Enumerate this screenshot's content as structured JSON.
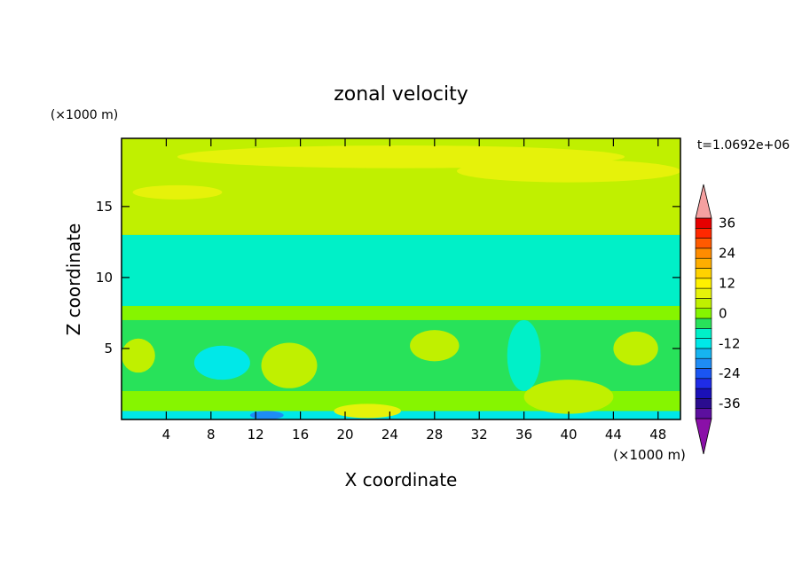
{
  "chart_data": {
    "type": "heatmap",
    "title": "zonal velocity",
    "xlabel": "X coordinate",
    "ylabel": "Z coordinate",
    "x_unit": "(×1000 m)",
    "y_unit": "(×1000 m)",
    "time_label": "t=1.0692e+06",
    "xlim": [
      0,
      50
    ],
    "ylim": [
      0,
      19.8
    ],
    "x_ticks": [
      4,
      8,
      12,
      16,
      20,
      24,
      28,
      32,
      36,
      40,
      44,
      48
    ],
    "y_ticks": [
      5,
      10,
      15
    ],
    "colorbar": {
      "levels": [
        -40,
        -36,
        -32,
        -28,
        -24,
        -20,
        -16,
        -12,
        -8,
        -4,
        0,
        4,
        8,
        12,
        16,
        20,
        24,
        28,
        32,
        36,
        40
      ],
      "tick_labels": [
        "36",
        "24",
        "12",
        "0",
        "-12",
        "-24",
        "-36"
      ],
      "tick_values": [
        36,
        24,
        12,
        0,
        -12,
        -24,
        -36
      ],
      "colors": [
        "#5c0f9e",
        "#2a0c8f",
        "#1a10b8",
        "#1f2ce6",
        "#1a55f2",
        "#1e8cf5",
        "#16b4f0",
        "#00e8e8",
        "#00f0c8",
        "#28e25a",
        "#86f500",
        "#c0f000",
        "#e6f20a",
        "#fff100",
        "#ffd200",
        "#ffae00",
        "#ff8c00",
        "#ff5a00",
        "#ff2800",
        "#e60000"
      ],
      "over_color": "#f5a0a0",
      "under_color": "#8a10a8"
    },
    "layers": [
      {
        "z": [
          0,
          0.6
        ],
        "value": -10
      },
      {
        "z": [
          0.6,
          2
        ],
        "value": 2
      },
      {
        "z": [
          2,
          4
        ],
        "value": -4
      },
      {
        "z": [
          4,
          7
        ],
        "value": -1
      },
      {
        "z": [
          7,
          8
        ],
        "value": 2
      },
      {
        "z": [
          8,
          13
        ],
        "value": -6
      },
      {
        "z": [
          13,
          19.8
        ],
        "value": 6
      }
    ],
    "features": [
      {
        "x": 15,
        "z": 3.8,
        "rx": 2.5,
        "rz": 1.6,
        "value": 6
      },
      {
        "x": 28,
        "z": 5.2,
        "rx": 2.2,
        "rz": 1.1,
        "value": 5
      },
      {
        "x": 40,
        "z": 1.6,
        "rx": 4,
        "rz": 1.2,
        "value": 6
      },
      {
        "x": 22,
        "z": 0.6,
        "rx": 3,
        "rz": 0.5,
        "value": 9
      },
      {
        "x": 1.5,
        "z": 4.5,
        "rx": 1.5,
        "rz": 1.2,
        "value": 5
      },
      {
        "x": 46,
        "z": 5,
        "rx": 2,
        "rz": 1.2,
        "value": 5
      },
      {
        "x": 9,
        "z": 4,
        "rx": 2.5,
        "rz": 1.2,
        "value": -10
      },
      {
        "x": 36,
        "z": 4.5,
        "rx": 1.5,
        "rz": 2.5,
        "value": -6
      },
      {
        "x": 13,
        "z": 0.3,
        "rx": 1.5,
        "rz": 0.3,
        "value": -18
      },
      {
        "x": 25,
        "z": 18.5,
        "rx": 20,
        "rz": 0.8,
        "value": 10
      },
      {
        "x": 40,
        "z": 17.5,
        "rx": 10,
        "rz": 0.8,
        "value": 10
      },
      {
        "x": 5,
        "z": 16,
        "rx": 4,
        "rz": 0.5,
        "value": 10
      }
    ]
  }
}
